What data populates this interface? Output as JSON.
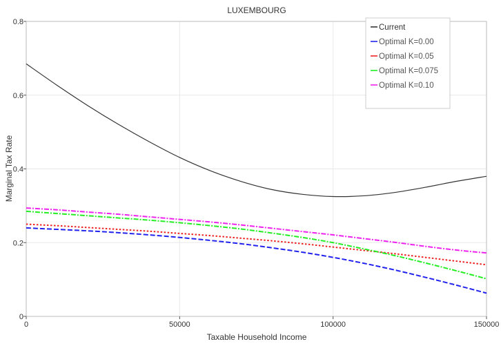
{
  "chart_data": {
    "type": "line",
    "title": "LUXEMBOURG",
    "xlabel": "Taxable Household Income",
    "ylabel": "Marginal Tax Rate",
    "xlim": [
      0,
      150000
    ],
    "ylim": [
      0,
      0.8
    ],
    "x_ticks": [
      0,
      50000,
      100000,
      150000
    ],
    "y_ticks": [
      0,
      0.2,
      0.4,
      0.6,
      0.8
    ],
    "x_tick_labels": [
      "0",
      "50000",
      "100000",
      "150000"
    ],
    "y_tick_labels": [
      "0",
      "0.2",
      "0.4",
      "0.6",
      "0.8"
    ],
    "grid": true,
    "legend_position": "top-right",
    "x": [
      0,
      10000,
      20000,
      30000,
      40000,
      50000,
      60000,
      70000,
      80000,
      90000,
      100000,
      110000,
      120000,
      130000,
      140000,
      150000
    ],
    "series": [
      {
        "name": "Current",
        "color": "#333333",
        "dash": "solid",
        "values": [
          0.685,
          0.627,
          0.572,
          0.521,
          0.474,
          0.431,
          0.395,
          0.366,
          0.344,
          0.331,
          0.325,
          0.327,
          0.336,
          0.35,
          0.366,
          0.38
        ]
      },
      {
        "name": "Optimal K=0.00",
        "color": "#2222ee",
        "dash": "dashed",
        "values": [
          0.24,
          0.236,
          0.232,
          0.227,
          0.221,
          0.214,
          0.206,
          0.197,
          0.186,
          0.174,
          0.16,
          0.144,
          0.126,
          0.106,
          0.085,
          0.063
        ]
      },
      {
        "name": "Optimal K=0.05",
        "color": "#ee2222",
        "dash": "dotted",
        "values": [
          0.25,
          0.246,
          0.241,
          0.236,
          0.231,
          0.225,
          0.219,
          0.212,
          0.205,
          0.197,
          0.188,
          0.179,
          0.17,
          0.16,
          0.15,
          0.14
        ]
      },
      {
        "name": "Optimal K=0.075",
        "color": "#22ee22",
        "dash": "dashdot",
        "values": [
          0.285,
          0.279,
          0.273,
          0.267,
          0.261,
          0.254,
          0.246,
          0.237,
          0.226,
          0.214,
          0.2,
          0.183,
          0.165,
          0.145,
          0.124,
          0.102
        ]
      },
      {
        "name": "Optimal K=0.10",
        "color": "#ee22ee",
        "dash": "dashdot",
        "values": [
          0.294,
          0.289,
          0.283,
          0.277,
          0.27,
          0.263,
          0.256,
          0.248,
          0.239,
          0.23,
          0.221,
          0.211,
          0.201,
          0.19,
          0.18,
          0.172
        ]
      }
    ]
  }
}
